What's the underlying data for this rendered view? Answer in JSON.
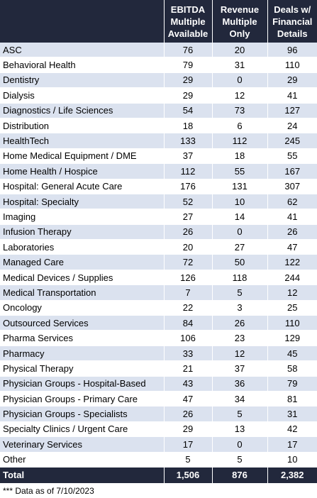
{
  "table": {
    "headers": [
      "",
      "EBITDA Multiple Available",
      "Revenue Multiple Only",
      "Deals w/ Financial Details"
    ],
    "rows": [
      [
        "ASC",
        "76",
        "20",
        "96"
      ],
      [
        "Behavioral Health",
        "79",
        "31",
        "110"
      ],
      [
        "Dentistry",
        "29",
        "0",
        "29"
      ],
      [
        "Dialysis",
        "29",
        "12",
        "41"
      ],
      [
        "Diagnostics / Life Sciences",
        "54",
        "73",
        "127"
      ],
      [
        "Distribution",
        "18",
        "6",
        "24"
      ],
      [
        "HealthTech",
        "133",
        "112",
        "245"
      ],
      [
        "Home Medical Equipment / DME",
        "37",
        "18",
        "55"
      ],
      [
        "Home Health / Hospice",
        "112",
        "55",
        "167"
      ],
      [
        "Hospital: General Acute Care",
        "176",
        "131",
        "307"
      ],
      [
        "Hospital: Specialty",
        "52",
        "10",
        "62"
      ],
      [
        "Imaging",
        "27",
        "14",
        "41"
      ],
      [
        "Infusion Therapy",
        "26",
        "0",
        "26"
      ],
      [
        "Laboratories",
        "20",
        "27",
        "47"
      ],
      [
        "Managed Care",
        "72",
        "50",
        "122"
      ],
      [
        "Medical Devices / Supplies",
        "126",
        "118",
        "244"
      ],
      [
        "Medical Transportation",
        "7",
        "5",
        "12"
      ],
      [
        "Oncology",
        "22",
        "3",
        "25"
      ],
      [
        "Outsourced Services",
        "84",
        "26",
        "110"
      ],
      [
        "Pharma Services",
        "106",
        "23",
        "129"
      ],
      [
        "Pharmacy",
        "33",
        "12",
        "45"
      ],
      [
        "Physical Therapy",
        "21",
        "37",
        "58"
      ],
      [
        "Physician Groups - Hospital-Based",
        "43",
        "36",
        "79"
      ],
      [
        "Physician Groups - Primary Care",
        "47",
        "34",
        "81"
      ],
      [
        "Physician Groups - Specialists",
        "26",
        "5",
        "31"
      ],
      [
        "Specialty Clinics / Urgent Care",
        "29",
        "13",
        "42"
      ],
      [
        "Veterinary Services",
        "17",
        "0",
        "17"
      ],
      [
        "Other",
        "5",
        "5",
        "10"
      ]
    ],
    "total": [
      "Total",
      "1,506",
      "876",
      "2,382"
    ]
  },
  "footnote": "*** Data as of 7/10/2023",
  "colors": {
    "header_bg": "#22283c",
    "band_bg": "#dbe2ef",
    "text_on_dark": "#ffffff"
  }
}
